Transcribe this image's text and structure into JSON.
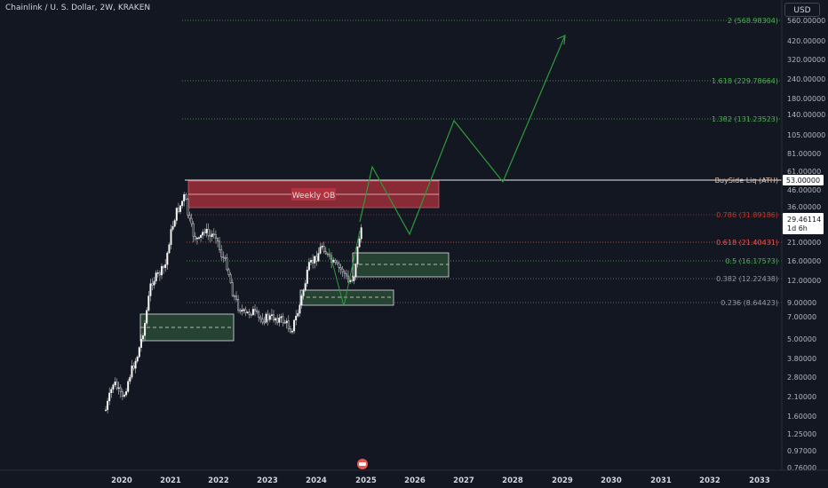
{
  "header": {
    "symbol_title": "Chainlink / U. S. Dollar, 2W, KRAKEN",
    "currency": "USD"
  },
  "price_axis": {
    "ticks": [
      "560.00000",
      "420.00000",
      "320.00000",
      "240.00000",
      "180.00000",
      "140.00000",
      "105.00000",
      "81.00000",
      "61.00000",
      "46.00000",
      "36.00000",
      "21.00000",
      "16.00000",
      "12.00000",
      "9.00000",
      "7.00000",
      "5.00000",
      "3.80000",
      "2.80000",
      "2.10000",
      "1.60000",
      "1.25000",
      "0.97000",
      "0.76000"
    ]
  },
  "time_axis": {
    "years": [
      "2020",
      "2021",
      "2022",
      "2023",
      "2024",
      "2025",
      "2026",
      "2027",
      "2028",
      "2029",
      "2030",
      "2031",
      "2032",
      "2033"
    ]
  },
  "levels": [
    {
      "label": "2 (568.98304)",
      "color": "#4caf50"
    },
    {
      "label": "1.618 (229.78664)",
      "color": "#4caf50"
    },
    {
      "label": "1.382 (131.23523)",
      "color": "#4caf50"
    },
    {
      "label": "BuySide Liq (ATH)",
      "color": "#e0c0b0"
    },
    {
      "label": "0.786 (31.89186)",
      "color": "#c0392b"
    },
    {
      "label": "0.618 (21.40431)",
      "color": "#ef5350"
    },
    {
      "label": "0.5 (16.17573)",
      "color": "#4caf50"
    },
    {
      "label": "0.382 (12.22438)",
      "color": "#9598a1"
    },
    {
      "label": "0.236 (8.64423)",
      "color": "#9598a1"
    }
  ],
  "markers": {
    "ath_price": "53.00000",
    "current_price": "29.46114",
    "countdown": "1d 6h"
  },
  "zones": {
    "weekly_ob_label": "Weekly OB"
  },
  "colors": {
    "bg": "#131722",
    "bull": "#ffffff",
    "bear": "#ffffff",
    "green": "#4caf50",
    "red": "#b2323f"
  }
}
